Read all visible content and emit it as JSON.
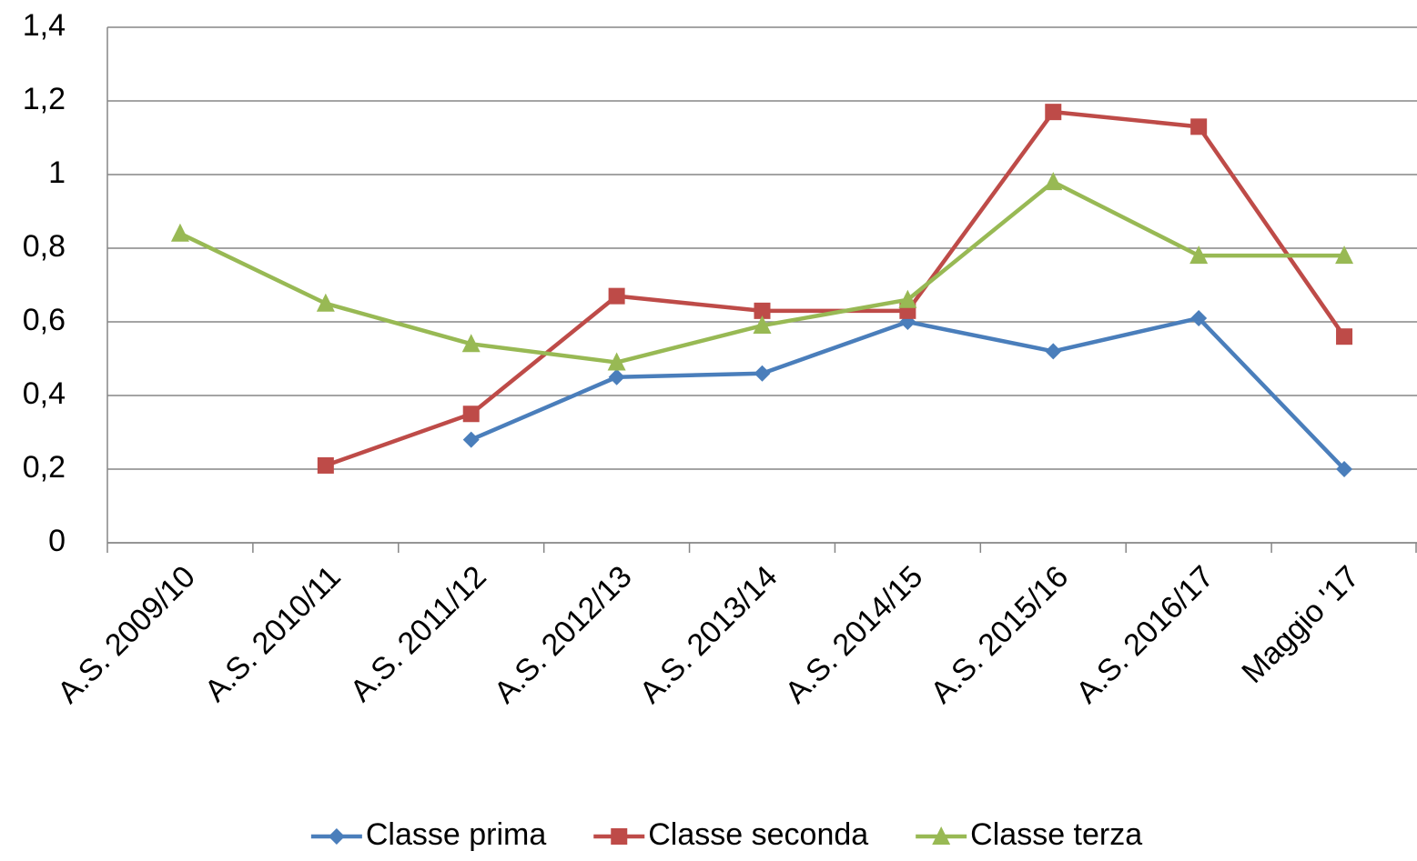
{
  "chart_data": {
    "type": "line",
    "categories": [
      "A.S. 2009/10",
      "A.S. 2010/11",
      "A.S. 2011/12",
      "A.S. 2012/13",
      "A.S. 2013/14",
      "A.S. 2014/15",
      "A.S. 2015/16",
      "A.S. 2016/17",
      "Maggio '17"
    ],
    "series": [
      {
        "name": "Classe prima",
        "color": "#4a7ebb",
        "marker": "diamond",
        "values": [
          null,
          null,
          0.28,
          0.45,
          0.46,
          0.6,
          0.52,
          0.61,
          0.2
        ]
      },
      {
        "name": "Classe seconda",
        "color": "#be4b48",
        "marker": "square",
        "values": [
          null,
          0.21,
          0.35,
          0.67,
          0.63,
          0.63,
          1.17,
          1.13,
          0.56
        ]
      },
      {
        "name": "Classe terza",
        "color": "#98b954",
        "marker": "triangle",
        "values": [
          0.84,
          0.65,
          0.54,
          0.49,
          0.59,
          0.66,
          0.98,
          0.78,
          0.78
        ]
      }
    ],
    "ylim": [
      0,
      1.4
    ],
    "yticks": [
      0,
      {
        "value": 0.2,
        "label": "0,2"
      },
      {
        "value": 0.4,
        "label": "0,4"
      },
      {
        "value": 0.6,
        "label": "0,6"
      },
      {
        "value": 0.8,
        "label": "0,8"
      },
      1,
      {
        "value": 1.2,
        "label": "1,2"
      },
      {
        "value": 1.4,
        "label": "1,4"
      }
    ],
    "grid": true,
    "legend": "bottom"
  }
}
